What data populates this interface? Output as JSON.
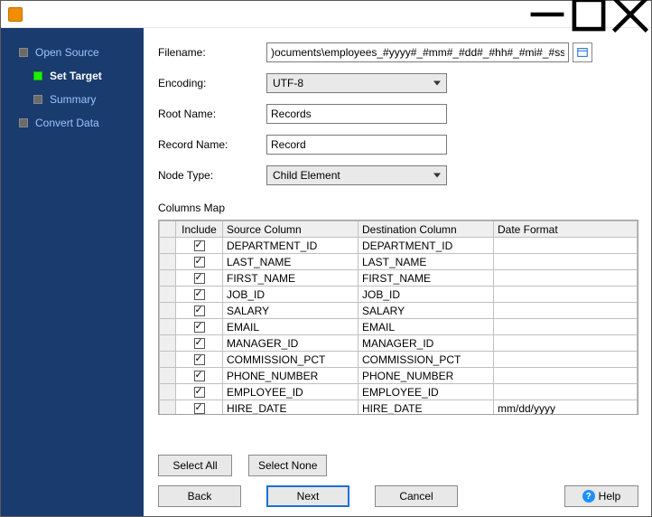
{
  "window": {
    "title": ""
  },
  "nav": {
    "items": [
      {
        "label": "Open Source",
        "active": false,
        "indent": false
      },
      {
        "label": "Set Target",
        "active": true,
        "indent": true
      },
      {
        "label": "Summary",
        "active": false,
        "indent": true
      },
      {
        "label": "Convert Data",
        "active": false,
        "indent": false
      }
    ]
  },
  "form": {
    "filename_label": "Filename:",
    "filename_value": ")ocuments\\employees_#yyyy#_#mm#_#dd#_#hh#_#mi#_#ss#.xml",
    "encoding_label": "Encoding:",
    "encoding_value": "UTF-8",
    "rootname_label": "Root Name:",
    "rootname_value": "Records",
    "recordname_label": "Record Name:",
    "recordname_value": "Record",
    "nodetype_label": "Node Type:",
    "nodetype_value": "Child Element"
  },
  "columns_section_label": "Columns Map",
  "grid": {
    "headers": {
      "include": "Include",
      "source": "Source Column",
      "destination": "Destination Column",
      "dateformat": "Date Format"
    },
    "rows": [
      {
        "include": true,
        "source": "DEPARTMENT_ID",
        "destination": "DEPARTMENT_ID",
        "dateformat": ""
      },
      {
        "include": true,
        "source": "LAST_NAME",
        "destination": "LAST_NAME",
        "dateformat": ""
      },
      {
        "include": true,
        "source": "FIRST_NAME",
        "destination": "FIRST_NAME",
        "dateformat": ""
      },
      {
        "include": true,
        "source": "JOB_ID",
        "destination": "JOB_ID",
        "dateformat": ""
      },
      {
        "include": true,
        "source": "SALARY",
        "destination": "SALARY",
        "dateformat": ""
      },
      {
        "include": true,
        "source": "EMAIL",
        "destination": "EMAIL",
        "dateformat": ""
      },
      {
        "include": true,
        "source": "MANAGER_ID",
        "destination": "MANAGER_ID",
        "dateformat": ""
      },
      {
        "include": true,
        "source": "COMMISSION_PCT",
        "destination": "COMMISSION_PCT",
        "dateformat": ""
      },
      {
        "include": true,
        "source": "PHONE_NUMBER",
        "destination": "PHONE_NUMBER",
        "dateformat": ""
      },
      {
        "include": true,
        "source": "EMPLOYEE_ID",
        "destination": "EMPLOYEE_ID",
        "dateformat": ""
      },
      {
        "include": true,
        "source": "HIRE_DATE",
        "destination": "HIRE_DATE",
        "dateformat": "mm/dd/yyyy"
      }
    ]
  },
  "buttons": {
    "select_all": "Select All",
    "select_none": "Select None",
    "back": "Back",
    "next": "Next",
    "cancel": "Cancel",
    "help": "Help"
  },
  "colors": {
    "sidebar_bg": "#1a3b6e",
    "nav_link": "#9cc4ff",
    "nav_active_marker": "#1ef000",
    "primary_border": "#1e6fd6",
    "help_icon": "#1e90ff"
  }
}
